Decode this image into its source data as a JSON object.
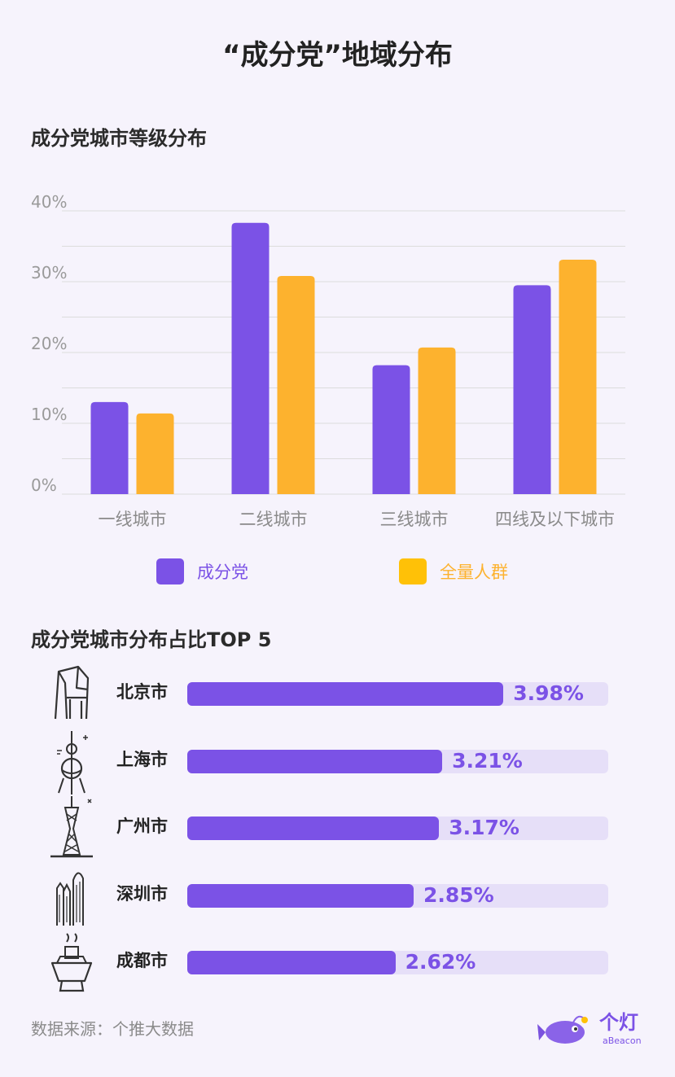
{
  "title": "“成分党”地域分布",
  "section1_title": "成分党城市等级分布",
  "section2_title": "成分党城市分布占比TOP 5",
  "chart_data": [
    {
      "type": "bar",
      "categories": [
        "一线城市",
        "二线城市",
        "三线城市",
        "四线及以下城市"
      ],
      "series": [
        {
          "name": "成分党",
          "values": [
            13.0,
            38.3,
            18.2,
            29.5
          ],
          "color": "#7b52e6"
        },
        {
          "name": "全量人群",
          "values": [
            11.4,
            30.8,
            20.7,
            33.1
          ],
          "color": "#fdb22e"
        }
      ],
      "yticks": [
        "0%",
        "10%",
        "20%",
        "30%",
        "40%"
      ],
      "ylim": [
        0,
        40
      ],
      "grid": true,
      "legend": "bottom"
    },
    {
      "type": "bar",
      "orientation": "horizontal",
      "categories": [
        "北京市",
        "上海市",
        "广州市",
        "深圳市",
        "成都市"
      ],
      "values": [
        3.98,
        3.21,
        3.17,
        2.85,
        2.62
      ],
      "labels": [
        "3.98%",
        "3.21%",
        "3.17%",
        "2.85%",
        "2.62%"
      ],
      "icons": [
        "cctv-tower-icon",
        "oriental-pearl-tower-icon",
        "canton-tower-icon",
        "shenzhen-skyscrapers-icon",
        "hotpot-icon"
      ],
      "color": "#7b52e6",
      "track_color": "#e6dff8",
      "xlim": [
        0,
        5.3
      ]
    }
  ],
  "legend_swatch_colors": [
    "#7b52e6",
    "#ffc107"
  ],
  "source": "数据来源：个推大数据",
  "logo": {
    "name": "个灯",
    "sub": "aBeacon"
  }
}
